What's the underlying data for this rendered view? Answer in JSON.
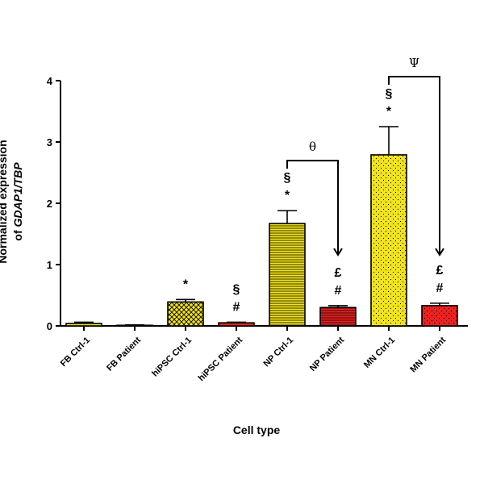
{
  "chart_data": {
    "type": "bar",
    "title": "",
    "xlabel": "Cell type",
    "ylabel_line1": "Normalized expression",
    "ylabel_prefix": "of ",
    "ylabel_italic": "GDAP1/TBP",
    "ylim": [
      0,
      4
    ],
    "yticks": [
      "0",
      "1",
      "2",
      "3",
      "4"
    ],
    "categories": [
      "FB Ctrl-1",
      "FB Patient",
      "hiPSC Ctrl-1",
      "hiPSC Patient",
      "NP Ctrl-1",
      "NP Patient",
      "MN Ctrl-1",
      "MN Patient"
    ],
    "values": [
      0.04,
      0.01,
      0.39,
      0.05,
      1.67,
      0.3,
      2.79,
      0.33
    ],
    "errors": [
      0.02,
      0.005,
      0.04,
      0.01,
      0.21,
      0.03,
      0.46,
      0.04
    ],
    "fills": [
      "#f2e41a",
      "#f2e41a",
      "#f2e41a",
      "#ee2020",
      "#f2e41a",
      "#ee2020",
      "#f2e41a",
      "#ee2020"
    ],
    "patterns": [
      "solid",
      "none",
      "crosshatch",
      "solid",
      "hlines",
      "hlines",
      "dots",
      "dots"
    ],
    "annotations": [
      [
        "",
        "",
        "",
        ""
      ],
      [],
      [
        "*"
      ],
      [
        "#",
        "§"
      ],
      [
        "*",
        "§"
      ],
      [
        "#",
        "£"
      ],
      [
        "*",
        "§"
      ],
      [
        "#",
        "£"
      ]
    ],
    "brackets": [
      {
        "from": 4,
        "to": 5,
        "label": "θ"
      },
      {
        "from": 6,
        "to": 7,
        "label": "Ψ"
      }
    ]
  }
}
